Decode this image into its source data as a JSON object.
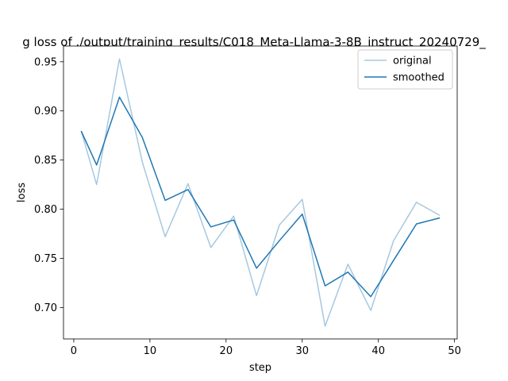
{
  "chart_data": {
    "type": "line",
    "title": "g loss of ./output/training_results/C018_Meta-Llama-3-8B_instruct_20240729_",
    "xlabel": "step",
    "ylabel": "loss",
    "xlim": [
      -1.35,
      50.35
    ],
    "ylim": [
      0.668,
      0.966
    ],
    "xticks": [
      0,
      10,
      20,
      30,
      40,
      50
    ],
    "xtick_labels": [
      "0",
      "10",
      "20",
      "30",
      "40",
      "50"
    ],
    "yticks": [
      0.7,
      0.75,
      0.8,
      0.85,
      0.9,
      0.95
    ],
    "ytick_labels": [
      "0.70",
      "0.75",
      "0.80",
      "0.85",
      "0.90",
      "0.95"
    ],
    "grid": false,
    "legend_position": "top-right",
    "x": [
      1,
      3,
      6,
      9,
      12,
      15,
      18,
      21,
      24,
      27,
      30,
      33,
      36,
      39,
      42,
      45,
      48
    ],
    "series": [
      {
        "name": "original",
        "color": "#a6c8e0",
        "values": [
          0.879,
          0.825,
          0.953,
          0.848,
          0.772,
          0.826,
          0.761,
          0.793,
          0.712,
          0.784,
          0.81,
          0.681,
          0.744,
          0.697,
          0.768,
          0.807,
          0.794
        ]
      },
      {
        "name": "smoothed",
        "color": "#1f77b4",
        "values": [
          0.879,
          0.845,
          0.914,
          0.873,
          0.809,
          0.82,
          0.782,
          0.789,
          0.74,
          0.768,
          0.795,
          0.722,
          0.736,
          0.711,
          0.748,
          0.785,
          0.791
        ]
      }
    ]
  }
}
